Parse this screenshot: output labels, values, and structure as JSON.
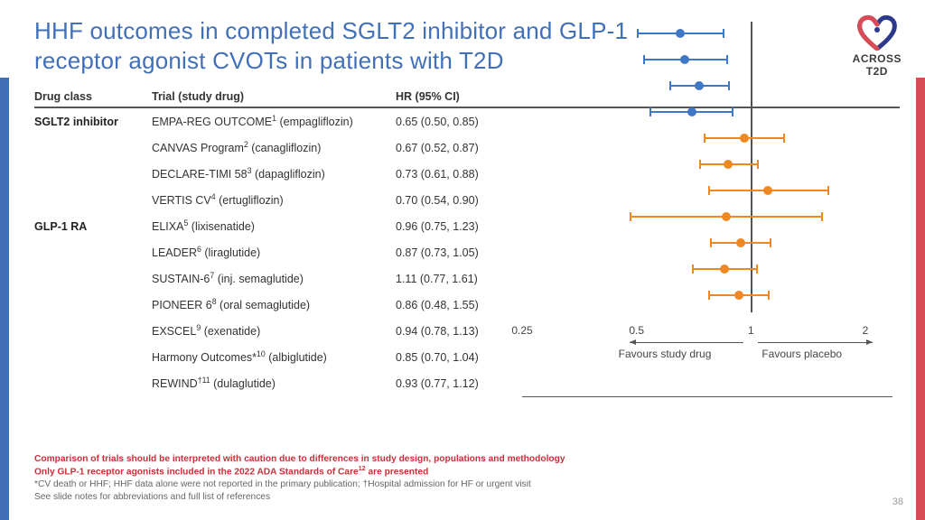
{
  "title": "HHF outcomes in completed SGLT2 inhibitor and GLP-1 receptor agonist CVOTs in patients with T2D",
  "logo": {
    "line1": "ACROSS",
    "line2": "T2D"
  },
  "page": "38",
  "headers": {
    "class": "Drug class",
    "trial": "Trial (study drug)",
    "hr": "HR (95% CI)"
  },
  "colors": {
    "sglt2": "#3e78c6",
    "glp1": "#ef8822",
    "rule": "#555555"
  },
  "axis": {
    "min": 0.25,
    "max": 2.0,
    "ref": 1.0,
    "ticks": [
      0.25,
      0.5,
      1,
      2
    ],
    "tick_labels": [
      "0.25",
      "0.5",
      "1",
      "2"
    ],
    "left_label": "Favours study drug",
    "right_label": "Favours placebo"
  },
  "rows": [
    {
      "group": "SGLT2 inhibitor",
      "trial": "EMPA-REG OUTCOME",
      "sup": "1",
      "drug": "empagliflozin",
      "hr": 0.65,
      "lo": 0.5,
      "hi": 0.85,
      "hr_text": "0.65 (0.50, 0.85)",
      "color": "sglt2"
    },
    {
      "group": "",
      "trial": "CANVAS Program",
      "sup": "2",
      "drug": "canagliflozin",
      "hr": 0.67,
      "lo": 0.52,
      "hi": 0.87,
      "hr_text": "0.67 (0.52, 0.87)",
      "color": "sglt2"
    },
    {
      "group": "",
      "trial": "DECLARE-TIMI 58",
      "sup": "3",
      "drug": "dapagliflozin",
      "hr": 0.73,
      "lo": 0.61,
      "hi": 0.88,
      "hr_text": "0.73 (0.61, 0.88)",
      "color": "sglt2"
    },
    {
      "group": "",
      "trial": "VERTIS CV",
      "sup": "4",
      "drug": "ertugliflozin",
      "hr": 0.7,
      "lo": 0.54,
      "hi": 0.9,
      "hr_text": "0.70 (0.54, 0.90)",
      "color": "sglt2"
    },
    {
      "group": "GLP-1 RA",
      "trial": "ELIXA",
      "sup": "5",
      "drug": "lixisenatide",
      "hr": 0.96,
      "lo": 0.75,
      "hi": 1.23,
      "hr_text": "0.96 (0.75, 1.23)",
      "color": "glp1"
    },
    {
      "group": "",
      "trial": "LEADER",
      "sup": "6",
      "drug": "liraglutide",
      "hr": 0.87,
      "lo": 0.73,
      "hi": 1.05,
      "hr_text": "0.87 (0.73, 1.05)",
      "color": "glp1"
    },
    {
      "group": "",
      "trial": "SUSTAIN-6",
      "sup": "7",
      "drug": "inj. semaglutide",
      "hr": 1.11,
      "lo": 0.77,
      "hi": 1.61,
      "hr_text": "1.11 (0.77, 1.61)",
      "color": "glp1"
    },
    {
      "group": "",
      "trial": "PIONEER 6",
      "sup": "8",
      "drug": "oral semaglutide",
      "hr": 0.86,
      "lo": 0.48,
      "hi": 1.55,
      "hr_text": "0.86 (0.48, 1.55)",
      "color": "glp1"
    },
    {
      "group": "",
      "trial": "EXSCEL",
      "sup": "9",
      "drug": "exenatide",
      "hr": 0.94,
      "lo": 0.78,
      "hi": 1.13,
      "hr_text": "0.94 (0.78, 1.13)",
      "color": "glp1"
    },
    {
      "group": "",
      "trial": "Harmony Outcomes*",
      "sup": "10",
      "drug": "albiglutide",
      "hr": 0.85,
      "lo": 0.7,
      "hi": 1.04,
      "hr_text": "0.85 (0.70, 1.04)",
      "color": "glp1"
    },
    {
      "group": "",
      "trial": "REWIND",
      "sup": "†11",
      "drug": "dulaglutide",
      "hr": 0.93,
      "lo": 0.77,
      "hi": 1.12,
      "hr_text": "0.93 (0.77, 1.12)",
      "color": "glp1"
    }
  ],
  "foot": {
    "l1": "Comparison of trials should be interpreted with caution due to differences in study design, populations and methodology",
    "l2_a": "Only GLP-1 receptor agonists included in the 2022 ADA Standards of Care",
    "l2_sup": "12",
    "l2_b": " are presented",
    "l3_a": "*CV death or HHF; HHF data alone were not reported in the primary publication; ",
    "l3_b": "†Hospital admission for HF or urgent visit",
    "l4": "See slide notes for abbreviations and full list of references"
  }
}
